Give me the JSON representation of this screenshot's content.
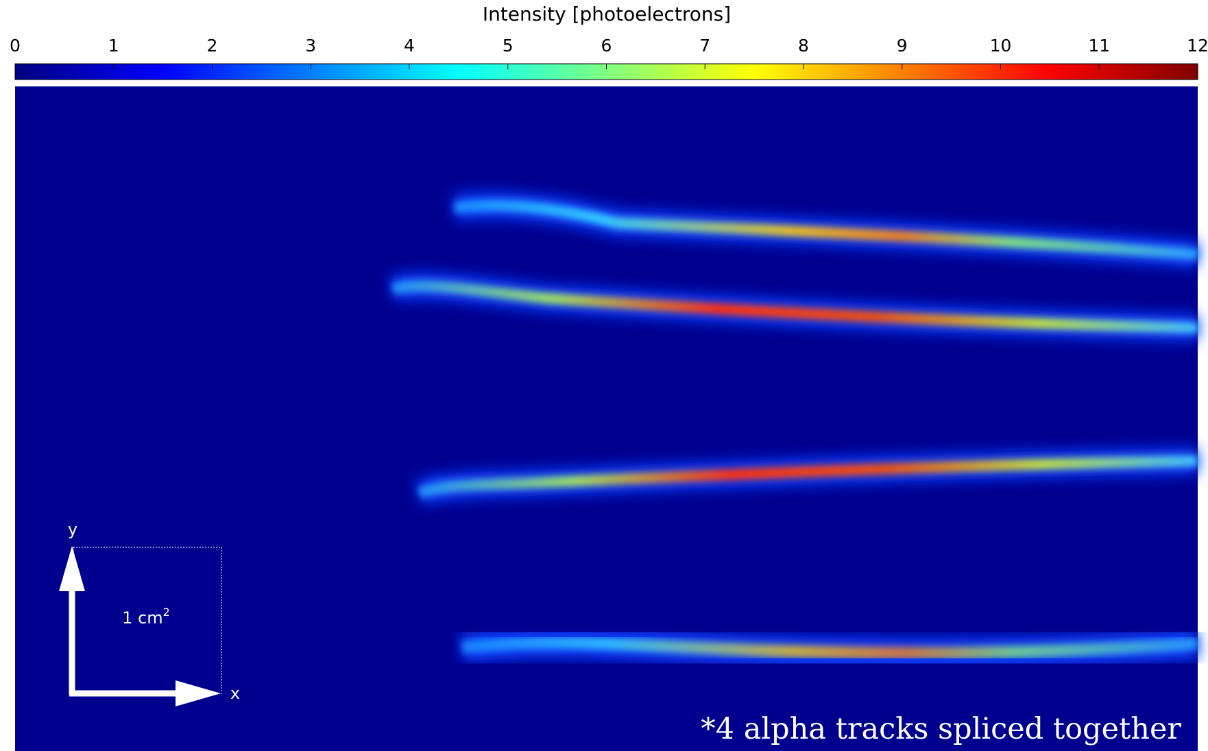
{
  "chart_data": {
    "type": "heatmap",
    "colorbar_label": "Intensity [photoelectrons]",
    "clim": [
      0,
      12
    ],
    "cticks": [
      0,
      1,
      2,
      3,
      4,
      5,
      6,
      7,
      8,
      9,
      10,
      11,
      12
    ],
    "annotation": "*4 alpha tracks spliced together",
    "scale": {
      "label": "1 cm",
      "superscript": "2",
      "x_label": "x",
      "y_label": "y"
    }
  }
}
